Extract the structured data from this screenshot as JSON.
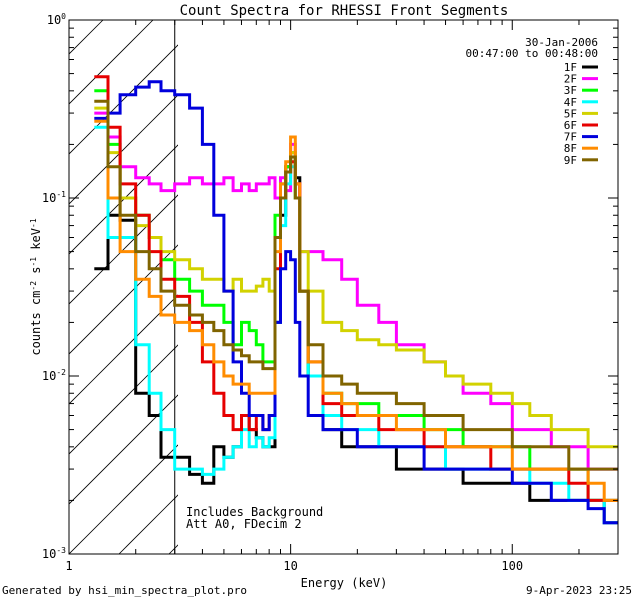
{
  "footer": {
    "generated_by": "Generated by hsi_min_spectra_plot.pro",
    "date": "9-Apr-2023 23:25"
  },
  "chart_data": {
    "type": "line",
    "title": "Count Spectra for RHESSI Front Segments",
    "xlabel": "Energy (keV)",
    "ylabel": "counts cm-2 s-1 keV-1",
    "xscale": "log",
    "yscale": "log",
    "xlim": [
      1,
      300
    ],
    "ylim": [
      0.001,
      1
    ],
    "x_ticks": [
      {
        "v": 1,
        "label": "1"
      },
      {
        "v": 10,
        "label": "10"
      },
      {
        "v": 100,
        "label": "100"
      }
    ],
    "y_ticks": [
      {
        "v": 1,
        "base": "10",
        "exp": "0"
      },
      {
        "v": 0.1,
        "base": "10",
        "exp": "-1"
      },
      {
        "v": 0.01,
        "base": "10",
        "exp": "-2"
      },
      {
        "v": 0.001,
        "base": "10",
        "exp": "-3"
      }
    ],
    "legend_position": "top-right",
    "info": {
      "date": "30-Jan-2006",
      "time_range": "00:47:00 to 00:48:00",
      "note1": "Includes Background",
      "note2": "Att A0, FDecim 2"
    },
    "hatch_region_max_energy": 3,
    "series": [
      {
        "name": "1F",
        "color": "#000000",
        "x": [
          1.3,
          1.5,
          1.7,
          2.0,
          2.3,
          2.6,
          3.0,
          3.5,
          4.0,
          4.5,
          5.0,
          5.5,
          6.0,
          6.5,
          7.0,
          7.5,
          8.0,
          8.5,
          9.0,
          9.5,
          10.0,
          10.5,
          11.0,
          12.0,
          14,
          17,
          20,
          25,
          30,
          40,
          50,
          60,
          80,
          100,
          120,
          150,
          180,
          220,
          260
        ],
        "y": [
          0.04,
          0.08,
          0.075,
          0.008,
          0.006,
          0.0035,
          0.0035,
          0.0028,
          0.0025,
          0.004,
          0.0035,
          0.004,
          0.006,
          0.005,
          0.0045,
          0.004,
          0.004,
          0.02,
          0.08,
          0.15,
          0.17,
          0.13,
          0.03,
          0.01,
          0.005,
          0.004,
          0.004,
          0.004,
          0.003,
          0.003,
          0.003,
          0.0025,
          0.0025,
          0.0025,
          0.002,
          0.002,
          0.002,
          0.002,
          0.0015
        ]
      },
      {
        "name": "2F",
        "color": "#ff00ff",
        "x": [
          1.3,
          1.5,
          1.7,
          2.0,
          2.3,
          2.6,
          3.0,
          3.5,
          4.0,
          4.5,
          5.0,
          5.5,
          6.0,
          6.5,
          7.0,
          7.5,
          8.0,
          8.5,
          9.0,
          9.5,
          10.0,
          10.5,
          11.0,
          12.0,
          14,
          17,
          20,
          25,
          30,
          40,
          50,
          60,
          80,
          100,
          120,
          150,
          180,
          220,
          260
        ],
        "y": [
          0.3,
          0.22,
          0.15,
          0.13,
          0.12,
          0.11,
          0.12,
          0.13,
          0.12,
          0.12,
          0.13,
          0.11,
          0.12,
          0.11,
          0.12,
          0.12,
          0.13,
          0.1,
          0.13,
          0.11,
          0.2,
          0.12,
          0.05,
          0.05,
          0.045,
          0.035,
          0.025,
          0.02,
          0.015,
          0.012,
          0.01,
          0.008,
          0.007,
          0.005,
          0.005,
          0.004,
          0.004,
          0.003,
          0.003
        ]
      },
      {
        "name": "3F",
        "color": "#00ff00",
        "x": [
          1.3,
          1.5,
          1.7,
          2.0,
          2.3,
          2.6,
          3.0,
          3.5,
          4.0,
          4.5,
          5.0,
          5.5,
          6.0,
          6.5,
          7.0,
          7.5,
          8.0,
          8.5,
          9.0,
          9.5,
          10.0,
          10.5,
          11.0,
          12.0,
          14,
          17,
          20,
          25,
          30,
          40,
          50,
          60,
          80,
          100,
          120,
          150,
          180,
          220,
          260
        ],
        "y": [
          0.4,
          0.2,
          0.1,
          0.08,
          0.06,
          0.045,
          0.035,
          0.03,
          0.025,
          0.025,
          0.02,
          0.015,
          0.02,
          0.018,
          0.015,
          0.012,
          0.012,
          0.08,
          0.12,
          0.15,
          0.18,
          0.1,
          0.03,
          0.01,
          0.008,
          0.007,
          0.007,
          0.006,
          0.006,
          0.005,
          0.005,
          0.004,
          0.004,
          0.004,
          0.003,
          0.003,
          0.003,
          0.002,
          0.002
        ]
      },
      {
        "name": "4F",
        "color": "#00ffff",
        "x": [
          1.3,
          1.5,
          1.7,
          2.0,
          2.3,
          2.6,
          3.0,
          3.5,
          4.0,
          4.5,
          5.0,
          5.5,
          6.0,
          6.5,
          7.0,
          7.5,
          8.0,
          8.5,
          9.0,
          9.5,
          10.0,
          10.5,
          11.0,
          12.0,
          14,
          17,
          20,
          25,
          30,
          40,
          50,
          60,
          80,
          100,
          120,
          150,
          180,
          220,
          260
        ],
        "y": [
          0.25,
          0.06,
          0.06,
          0.015,
          0.008,
          0.005,
          0.003,
          0.003,
          0.0028,
          0.003,
          0.0035,
          0.004,
          0.005,
          0.004,
          0.0045,
          0.004,
          0.0045,
          0.02,
          0.07,
          0.12,
          0.15,
          0.1,
          0.03,
          0.01,
          0.006,
          0.005,
          0.005,
          0.004,
          0.004,
          0.004,
          0.003,
          0.003,
          0.003,
          0.003,
          0.0025,
          0.0025,
          0.002,
          0.002,
          0.0015
        ]
      },
      {
        "name": "5F",
        "color": "#d2d200",
        "x": [
          1.3,
          1.5,
          1.7,
          2.0,
          2.3,
          2.6,
          3.0,
          3.5,
          4.0,
          4.5,
          5.0,
          5.5,
          6.0,
          6.5,
          7.0,
          7.5,
          8.0,
          8.5,
          9.0,
          9.5,
          10.0,
          10.5,
          11.0,
          12.0,
          14,
          17,
          20,
          25,
          30,
          40,
          50,
          60,
          80,
          100,
          120,
          150,
          180,
          220,
          260
        ],
        "y": [
          0.32,
          0.18,
          0.1,
          0.07,
          0.06,
          0.05,
          0.045,
          0.04,
          0.035,
          0.035,
          0.03,
          0.035,
          0.03,
          0.03,
          0.032,
          0.035,
          0.03,
          0.06,
          0.1,
          0.14,
          0.18,
          0.1,
          0.05,
          0.03,
          0.02,
          0.018,
          0.016,
          0.015,
          0.014,
          0.012,
          0.01,
          0.009,
          0.008,
          0.007,
          0.006,
          0.005,
          0.005,
          0.004,
          0.004
        ]
      },
      {
        "name": "6F",
        "color": "#e60000",
        "x": [
          1.3,
          1.5,
          1.7,
          2.0,
          2.3,
          2.6,
          3.0,
          3.5,
          4.0,
          4.5,
          5.0,
          5.5,
          6.0,
          6.5,
          7.0,
          7.5,
          8.0,
          8.5,
          9.0,
          9.5,
          10.0,
          10.5,
          11.0,
          12.0,
          14,
          17,
          20,
          25,
          30,
          40,
          50,
          60,
          80,
          100,
          120,
          150,
          180,
          220,
          260
        ],
        "y": [
          0.48,
          0.25,
          0.12,
          0.08,
          0.05,
          0.035,
          0.028,
          0.02,
          0.012,
          0.008,
          0.006,
          0.005,
          0.006,
          0.005,
          0.006,
          0.005,
          0.006,
          0.04,
          0.1,
          0.14,
          0.16,
          0.12,
          0.03,
          0.012,
          0.007,
          0.006,
          0.006,
          0.005,
          0.005,
          0.004,
          0.004,
          0.004,
          0.003,
          0.003,
          0.003,
          0.003,
          0.0025,
          0.002,
          0.002
        ]
      },
      {
        "name": "7F",
        "color": "#0000dc",
        "x": [
          1.3,
          1.5,
          1.7,
          2.0,
          2.3,
          2.6,
          3.0,
          3.5,
          4.0,
          4.5,
          5.0,
          5.5,
          6.0,
          6.5,
          7.0,
          7.5,
          8.0,
          8.5,
          9.0,
          9.5,
          10.0,
          10.5,
          11.0,
          12.0,
          14,
          17,
          20,
          25,
          30,
          40,
          50,
          60,
          80,
          100,
          120,
          150,
          180,
          220,
          260
        ],
        "y": [
          0.28,
          0.3,
          0.38,
          0.42,
          0.45,
          0.4,
          0.38,
          0.32,
          0.2,
          0.08,
          0.03,
          0.012,
          0.008,
          0.006,
          0.006,
          0.005,
          0.006,
          0.02,
          0.04,
          0.05,
          0.045,
          0.02,
          0.01,
          0.006,
          0.005,
          0.005,
          0.004,
          0.004,
          0.004,
          0.003,
          0.003,
          0.003,
          0.003,
          0.0025,
          0.0025,
          0.002,
          0.002,
          0.0018,
          0.0015
        ]
      },
      {
        "name": "8F",
        "color": "#ff8c00",
        "x": [
          1.3,
          1.5,
          1.7,
          2.0,
          2.3,
          2.6,
          3.0,
          3.5,
          4.0,
          4.5,
          5.0,
          5.5,
          6.0,
          6.5,
          7.0,
          7.5,
          8.0,
          8.5,
          9.0,
          9.5,
          10.0,
          10.5,
          11.0,
          12.0,
          14,
          17,
          20,
          25,
          30,
          40,
          50,
          60,
          80,
          100,
          120,
          150,
          180,
          220,
          260
        ],
        "y": [
          0.27,
          0.1,
          0.05,
          0.035,
          0.028,
          0.022,
          0.02,
          0.018,
          0.015,
          0.012,
          0.01,
          0.009,
          0.009,
          0.008,
          0.008,
          0.008,
          0.008,
          0.05,
          0.12,
          0.16,
          0.22,
          0.12,
          0.03,
          0.012,
          0.008,
          0.007,
          0.006,
          0.006,
          0.005,
          0.005,
          0.004,
          0.004,
          0.004,
          0.003,
          0.003,
          0.003,
          0.003,
          0.0025,
          0.002
        ]
      },
      {
        "name": "9F",
        "color": "#806400",
        "x": [
          1.3,
          1.5,
          1.7,
          2.0,
          2.3,
          2.6,
          3.0,
          3.5,
          4.0,
          4.5,
          5.0,
          5.5,
          6.0,
          6.5,
          7.0,
          7.5,
          8.0,
          8.5,
          9.0,
          9.5,
          10.0,
          10.5,
          11.0,
          12.0,
          14,
          17,
          20,
          25,
          30,
          40,
          50,
          60,
          80,
          100,
          120,
          150,
          180,
          220,
          260
        ],
        "y": [
          0.35,
          0.15,
          0.08,
          0.05,
          0.04,
          0.03,
          0.025,
          0.022,
          0.02,
          0.018,
          0.015,
          0.014,
          0.013,
          0.012,
          0.012,
          0.011,
          0.011,
          0.06,
          0.1,
          0.14,
          0.17,
          0.1,
          0.03,
          0.015,
          0.01,
          0.009,
          0.008,
          0.008,
          0.007,
          0.006,
          0.006,
          0.005,
          0.005,
          0.004,
          0.004,
          0.004,
          0.003,
          0.003,
          0.003
        ]
      }
    ]
  }
}
